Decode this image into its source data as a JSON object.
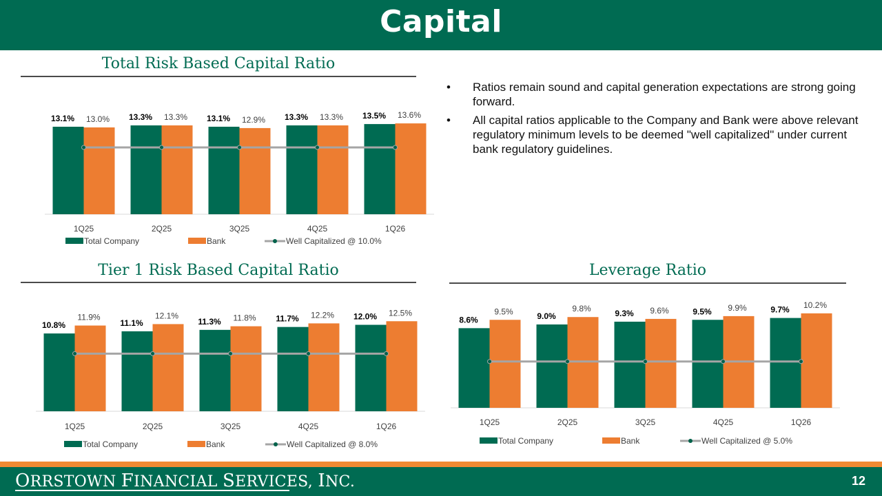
{
  "page": {
    "title": "Capital",
    "page_number": "12",
    "company_logo": "Orrstown Financial Services, Inc."
  },
  "bullets": [
    "Ratios remain sound and capital generation expectations are strong going forward.",
    "All capital ratios applicable to the Company and Bank were above relevant regulatory minimum levels to be deemed \"well capitalized\" under current bank regulatory guidelines."
  ],
  "bullet_symbol": "•",
  "colors": {
    "total_company": "#006b52",
    "bank": "#ed7d31",
    "well_capitalized": "#a5a5a5",
    "marker": "#00614a"
  },
  "chart_data": [
    {
      "type": "bar",
      "title": "Total Risk Based Capital Ratio",
      "categories": [
        "1Q25",
        "2Q25",
        "3Q25",
        "4Q25",
        "1Q26"
      ],
      "series": [
        {
          "name": "Total Company",
          "values": [
            13.1,
            13.3,
            13.1,
            13.3,
            13.5
          ],
          "labels": [
            "13.1%",
            "13.3%",
            "13.1%",
            "13.3%",
            "13.5%"
          ]
        },
        {
          "name": "Bank",
          "values": [
            13.0,
            13.3,
            12.9,
            13.3,
            13.6
          ],
          "labels": [
            "13.0%",
            "13.3%",
            "12.9%",
            "13.3%",
            "13.6%"
          ]
        },
        {
          "name": "Well Capitalized @ 10.0%",
          "type": "line",
          "values": [
            10.0,
            10.0,
            10.0,
            10.0,
            10.0
          ]
        }
      ],
      "ylim": [
        0,
        16.5
      ],
      "legend": "bottom",
      "grid": false
    },
    {
      "type": "bar",
      "title": "Tier 1 Risk Based Capital Ratio",
      "categories": [
        "1Q25",
        "2Q25",
        "3Q25",
        "4Q25",
        "1Q26"
      ],
      "series": [
        {
          "name": "Total Company",
          "values": [
            10.8,
            11.1,
            11.3,
            11.7,
            12.0
          ],
          "labels": [
            "10.8%",
            "11.1%",
            "11.3%",
            "11.7%",
            "12.0%"
          ]
        },
        {
          "name": "Bank",
          "values": [
            11.9,
            12.1,
            11.8,
            12.2,
            12.5
          ],
          "labels": [
            "11.9%",
            "12.1%",
            "11.8%",
            "12.2%",
            "12.5%"
          ]
        },
        {
          "name": "Well Capitalized @ 8.0%",
          "type": "line",
          "values": [
            8.0,
            8.0,
            8.0,
            8.0,
            8.0
          ]
        }
      ],
      "ylim": [
        0,
        15.3
      ],
      "legend": "bottom",
      "grid": false
    },
    {
      "type": "bar",
      "title": "Leverage Ratio",
      "categories": [
        "1Q25",
        "2Q25",
        "3Q25",
        "4Q25",
        "1Q26"
      ],
      "series": [
        {
          "name": "Total Company",
          "values": [
            8.6,
            9.0,
            9.3,
            9.5,
            9.7
          ],
          "labels": [
            "8.6%",
            "9.0%",
            "9.3%",
            "9.5%",
            "9.7%"
          ]
        },
        {
          "name": "Bank",
          "values": [
            9.5,
            9.8,
            9.6,
            9.9,
            10.2
          ],
          "labels": [
            "9.5%",
            "9.8%",
            "9.6%",
            "9.9%",
            "10.2%"
          ]
        },
        {
          "name": "Well Capitalized @ 5.0%",
          "type": "line",
          "values": [
            5.0,
            5.0,
            5.0,
            5.0,
            5.0
          ]
        }
      ],
      "ylim": [
        0,
        11.9
      ],
      "legend": "bottom",
      "grid": false
    }
  ]
}
